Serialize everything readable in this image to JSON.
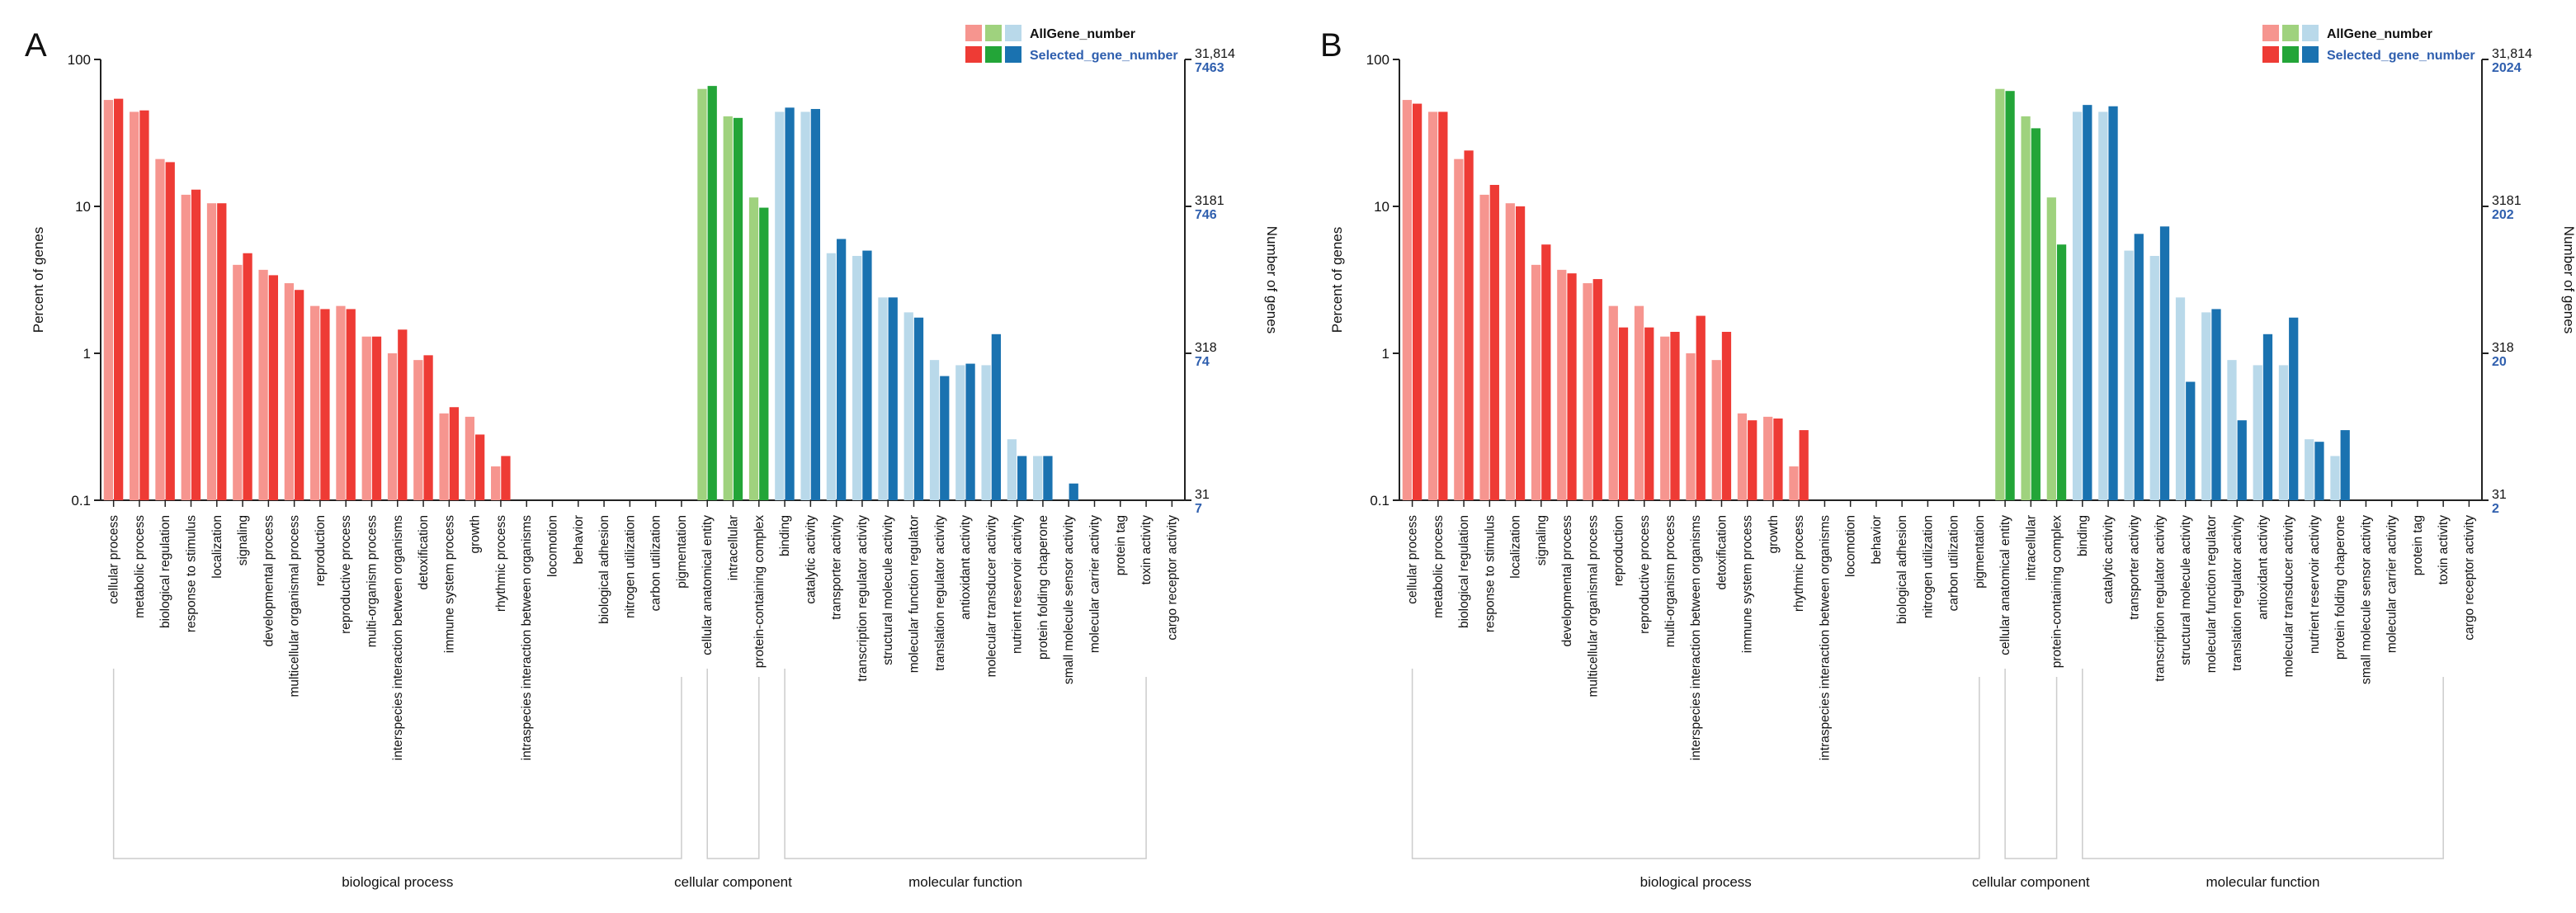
{
  "colors": {
    "bp_light": "#f6958f",
    "bp_dark": "#ee3b35",
    "cc_light": "#9fd27e",
    "cc_dark": "#23a538",
    "mf_light": "#b9d9ea",
    "mf_dark": "#1a72b0",
    "axis": "#222222",
    "right_ticks_selected": "#2f5fae",
    "bracket": "#cccccc"
  },
  "chart_data": [
    {
      "panel_label": "A",
      "type": "bar",
      "scale": "log",
      "ylabel": "Percent of genes",
      "y2label": "Number of genes",
      "ylim": [
        0.1,
        100
      ],
      "yticks": [
        "100",
        "10",
        "1",
        "0.1"
      ],
      "right_ticks_all": [
        "31,814",
        "3181",
        "318",
        "31"
      ],
      "right_ticks_selected": [
        "7463",
        "746",
        "74",
        "7"
      ],
      "legend": [
        "AllGene_number",
        "Selected_gene_number"
      ],
      "groups": [
        {
          "name": "biological process",
          "count": 23
        },
        {
          "name": "cellular component",
          "count": 3
        },
        {
          "name": "molecular function",
          "count": 15
        }
      ],
      "categories": [
        "cellular process",
        "metabolic process",
        "biological regulation",
        "response to stimulus",
        "localization",
        "signaling",
        "developmental process",
        "multicellular organismal process",
        "reproduction",
        "reproductive process",
        "multi-organism process",
        "interspecies interaction between organisms",
        "detoxification",
        "immune system process",
        "growth",
        "rhythmic process",
        "intraspecies interaction between organisms",
        "locomotion",
        "behavior",
        "biological adhesion",
        "nitrogen utilization",
        "carbon utilization",
        "pigmentation",
        "cellular anatomical entity",
        "intracellular",
        "protein-containing complex",
        "binding",
        "catalytic activity",
        "transporter activity",
        "transcription regulator activity",
        "structural molecule activity",
        "molecular function regulator",
        "translation regulator activity",
        "antioxidant activity",
        "molecular transducer activity",
        "nutrient reservoir activity",
        "protein folding chaperone",
        "small molecule sensor activity",
        "molecular carrier activity",
        "protein tag",
        "toxin activity",
        "cargo receptor activity"
      ],
      "series": [
        {
          "name": "AllGene_number",
          "values": [
            53,
            44,
            21,
            12,
            10.5,
            4.0,
            3.7,
            3.0,
            2.1,
            2.1,
            1.3,
            1.0,
            0.9,
            0.39,
            0.37,
            0.17,
            null,
            null,
            null,
            null,
            null,
            null,
            null,
            63,
            41,
            11.5,
            44,
            44,
            4.8,
            4.6,
            2.4,
            1.9,
            0.9,
            0.83,
            0.83,
            0.26,
            0.2,
            0.1,
            null,
            null,
            null,
            null
          ]
        },
        {
          "name": "Selected_gene_number",
          "values": [
            54,
            45,
            20,
            13,
            10.5,
            4.8,
            3.4,
            2.7,
            2.0,
            2.0,
            1.3,
            1.45,
            0.97,
            0.43,
            0.28,
            0.2,
            null,
            null,
            null,
            null,
            null,
            null,
            null,
            66,
            40,
            9.8,
            47,
            46,
            6.0,
            5.0,
            2.4,
            1.75,
            0.7,
            0.85,
            1.35,
            0.2,
            0.2,
            0.13,
            null,
            null,
            null,
            null
          ]
        }
      ]
    },
    {
      "panel_label": "B",
      "type": "bar",
      "scale": "log",
      "ylabel": "Percent of genes",
      "y2label": "Number of genes",
      "ylim": [
        0.1,
        100
      ],
      "yticks": [
        "100",
        "10",
        "1",
        "0.1"
      ],
      "right_ticks_all": [
        "31,814",
        "3181",
        "318",
        "31"
      ],
      "right_ticks_selected": [
        "2024",
        "202",
        "20",
        "2"
      ],
      "legend": [
        "AllGene_number",
        "Selected_gene_number"
      ],
      "groups": [
        {
          "name": "biological process",
          "count": 23
        },
        {
          "name": "cellular component",
          "count": 3
        },
        {
          "name": "molecular function",
          "count": 15
        }
      ],
      "categories": [
        "cellular process",
        "metabolic process",
        "biological regulation",
        "response to stimulus",
        "localization",
        "signaling",
        "developmental process",
        "multicellular organismal process",
        "reproduction",
        "reproductive process",
        "multi-organism process",
        "interspecies interaction between organisms",
        "detoxification",
        "immune system process",
        "growth",
        "rhythmic process",
        "intraspecies interaction between organisms",
        "locomotion",
        "behavior",
        "biological adhesion",
        "nitrogen utilization",
        "carbon utilization",
        "pigmentation",
        "cellular anatomical entity",
        "intracellular",
        "protein-containing complex",
        "binding",
        "catalytic activity",
        "transporter activity",
        "transcription regulator activity",
        "structural molecule activity",
        "molecular function regulator",
        "translation regulator activity",
        "antioxidant activity",
        "molecular transducer activity",
        "nutrient reservoir activity",
        "protein folding chaperone",
        "small molecule sensor activity",
        "molecular carrier activity",
        "protein tag",
        "toxin activity",
        "cargo receptor activity"
      ],
      "series": [
        {
          "name": "AllGene_number",
          "values": [
            53,
            44,
            21,
            12,
            10.5,
            4.0,
            3.7,
            3.0,
            2.1,
            2.1,
            1.3,
            1.0,
            0.9,
            0.39,
            0.37,
            0.17,
            null,
            null,
            null,
            null,
            null,
            null,
            null,
            63,
            41,
            11.5,
            44,
            44,
            5.0,
            4.6,
            2.4,
            1.9,
            0.9,
            0.83,
            0.83,
            0.26,
            0.2,
            null,
            null,
            null,
            null,
            null
          ]
        },
        {
          "name": "Selected_gene_number",
          "values": [
            50,
            44,
            24,
            14,
            10,
            5.5,
            3.5,
            3.2,
            1.5,
            1.5,
            1.4,
            1.8,
            1.4,
            0.35,
            0.36,
            0.3,
            null,
            null,
            null,
            null,
            null,
            null,
            null,
            61,
            34,
            5.5,
            49,
            48,
            6.5,
            7.3,
            0.64,
            2.0,
            0.35,
            1.35,
            1.75,
            0.25,
            0.3,
            null,
            null,
            null,
            null,
            null
          ]
        }
      ]
    }
  ]
}
